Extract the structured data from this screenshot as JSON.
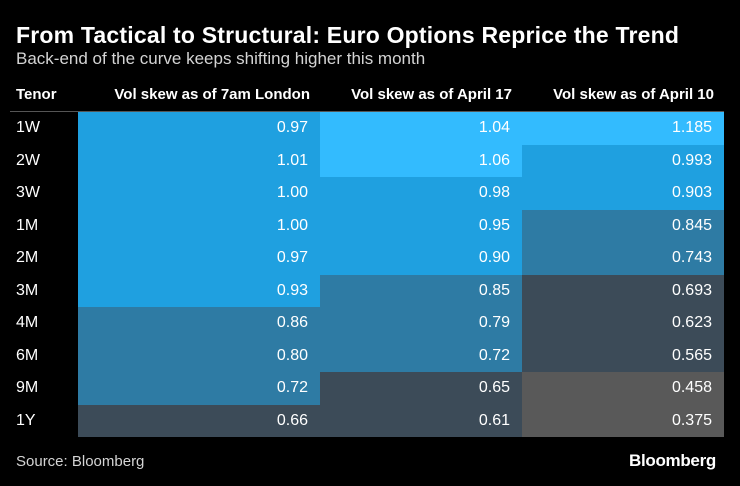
{
  "title": "From Tactical to Structural: Euro Options Reprice the Trend",
  "subtitle": "Back-end of the curve keeps shifting higher this month",
  "source": "Source: Bloomberg",
  "brand": "Bloomberg",
  "colors": {
    "background": "#000000",
    "bright": "#33bbfe",
    "mid": "#1fa0e0",
    "steel": "#2e7ba4",
    "slate": "#3c4b58",
    "gray": "#595959"
  },
  "chart_data": {
    "type": "table",
    "columns": [
      "Tenor",
      "Vol skew as of 7am London",
      "Vol skew as of April 17",
      "Vol skew as of April 10"
    ],
    "rows": [
      {
        "tenor": "1W",
        "values": [
          "0.97",
          "1.04",
          "1.185"
        ],
        "shade": [
          "mid",
          "bright",
          "bright"
        ]
      },
      {
        "tenor": "2W",
        "values": [
          "1.01",
          "1.06",
          "0.993"
        ],
        "shade": [
          "mid",
          "bright",
          "mid"
        ]
      },
      {
        "tenor": "3W",
        "values": [
          "1.00",
          "0.98",
          "0.903"
        ],
        "shade": [
          "mid",
          "mid",
          "mid"
        ]
      },
      {
        "tenor": "1M",
        "values": [
          "1.00",
          "0.95",
          "0.845"
        ],
        "shade": [
          "mid",
          "mid",
          "steel"
        ]
      },
      {
        "tenor": "2M",
        "values": [
          "0.97",
          "0.90",
          "0.743"
        ],
        "shade": [
          "mid",
          "mid",
          "steel"
        ]
      },
      {
        "tenor": "3M",
        "values": [
          "0.93",
          "0.85",
          "0.693"
        ],
        "shade": [
          "mid",
          "steel",
          "slate"
        ]
      },
      {
        "tenor": "4M",
        "values": [
          "0.86",
          "0.79",
          "0.623"
        ],
        "shade": [
          "steel",
          "steel",
          "slate"
        ]
      },
      {
        "tenor": "6M",
        "values": [
          "0.80",
          "0.72",
          "0.565"
        ],
        "shade": [
          "steel",
          "steel",
          "slate"
        ]
      },
      {
        "tenor": "9M",
        "values": [
          "0.72",
          "0.65",
          "0.458"
        ],
        "shade": [
          "steel",
          "slate",
          "gray"
        ]
      },
      {
        "tenor": "1Y",
        "values": [
          "0.66",
          "0.61",
          "0.375"
        ],
        "shade": [
          "slate",
          "slate",
          "gray"
        ]
      }
    ]
  }
}
